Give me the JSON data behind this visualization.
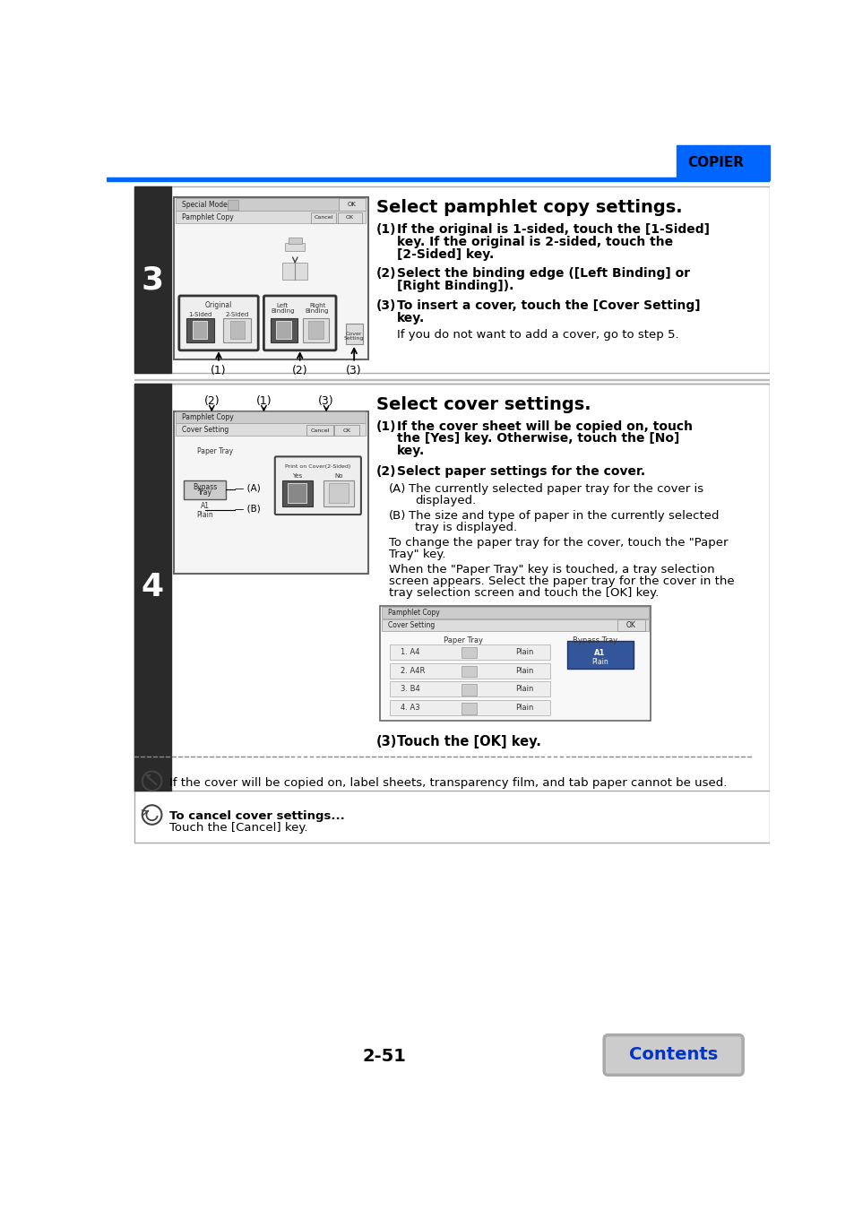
{
  "page_title": "COPIER",
  "page_number": "2-51",
  "header_blue": "#0066FF",
  "step3_number": "3",
  "step4_number": "4",
  "step3_heading": "Select pamphlet copy settings.",
  "step4_heading": "Select cover settings.",
  "note1": "If the cover will be copied on, label sheets, transparency film, and tab paper cannot be used.",
  "note2_bold": "To cancel cover settings...",
  "note2": "Touch the [Cancel] key.",
  "bg_color": "#FFFFFF",
  "sidebar_color": "#2A2A2A",
  "blue_color": "#0066FF",
  "light_gray": "#E8E8E8",
  "mid_gray": "#CCCCCC",
  "dark_gray": "#888888",
  "btn_dark": "#666666",
  "contents_btn_color": "#0033CC",
  "contents_btn_bg": "#CCCCCC",
  "tray_rows": [
    [
      "1. A4",
      "Plain"
    ],
    [
      "2. A4R",
      "Plain"
    ],
    [
      "3. B4",
      "Plain"
    ],
    [
      "4. A3",
      "Plain"
    ]
  ]
}
